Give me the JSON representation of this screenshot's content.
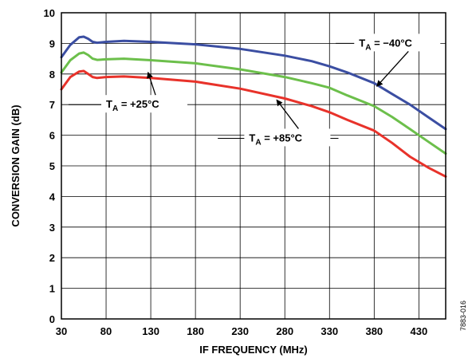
{
  "chart_data": {
    "type": "line",
    "xlabel": "IF FREQUENCY (MHz)",
    "ylabel": "CONVERSION GAIN (dB)",
    "xlim": [
      30,
      460
    ],
    "ylim": [
      0,
      10
    ],
    "xticks": [
      30,
      80,
      130,
      180,
      230,
      280,
      330,
      380,
      430
    ],
    "yticks": [
      0,
      1,
      2,
      3,
      4,
      5,
      6,
      7,
      8,
      9,
      10
    ],
    "grid": true,
    "figure_code": "7883-016",
    "annotations": [
      {
        "base": "T",
        "sub": "A",
        "rest": " = −40°C",
        "x": 363,
        "y": 9.0,
        "arrow_to": [
          383,
          7.6
        ],
        "line": [
          [
            337,
            9.0
          ],
          [
            447,
            9.0
          ]
        ]
      },
      {
        "base": "T",
        "sub": "A",
        "rest": " = +25°C",
        "x": 80,
        "y": 7.0,
        "arrow_to": [
          127,
          8.05
        ],
        "line": [
          [
            38,
            7.0
          ],
          [
            154,
            7.0
          ]
        ]
      },
      {
        "base": "T",
        "sub": "A",
        "rest": " = +85°C",
        "x": 240,
        "y": 5.9,
        "arrow_to": [
          271,
          7.15
        ],
        "line": [
          [
            205,
            5.9
          ],
          [
            340,
            5.9
          ]
        ]
      }
    ],
    "series": [
      {
        "color": "#3b4ea2",
        "x": [
          30,
          40,
          50,
          55,
          60,
          65,
          70,
          80,
          100,
          130,
          180,
          230,
          280,
          310,
          330,
          350,
          380,
          400,
          420,
          440,
          460
        ],
        "y": [
          8.55,
          8.95,
          9.2,
          9.22,
          9.15,
          9.05,
          9.02,
          9.05,
          9.08,
          9.05,
          8.97,
          8.82,
          8.6,
          8.42,
          8.25,
          8.05,
          7.7,
          7.35,
          7.0,
          6.6,
          6.2
        ]
      },
      {
        "color": "#6cbf4b",
        "x": [
          30,
          40,
          50,
          55,
          60,
          65,
          70,
          80,
          100,
          130,
          180,
          230,
          280,
          310,
          330,
          350,
          380,
          400,
          420,
          440,
          460
        ],
        "y": [
          8.05,
          8.45,
          8.67,
          8.7,
          8.62,
          8.5,
          8.46,
          8.48,
          8.5,
          8.45,
          8.35,
          8.15,
          7.9,
          7.7,
          7.55,
          7.3,
          6.95,
          6.6,
          6.2,
          5.8,
          5.4
        ]
      },
      {
        "color": "#e8322a",
        "x": [
          30,
          40,
          50,
          55,
          60,
          65,
          70,
          80,
          100,
          130,
          180,
          230,
          280,
          310,
          330,
          350,
          380,
          400,
          420,
          440,
          460
        ],
        "y": [
          7.5,
          7.9,
          8.08,
          8.1,
          8.0,
          7.9,
          7.87,
          7.9,
          7.92,
          7.87,
          7.75,
          7.52,
          7.2,
          6.95,
          6.75,
          6.5,
          6.15,
          5.75,
          5.3,
          4.95,
          4.65
        ]
      }
    ]
  }
}
